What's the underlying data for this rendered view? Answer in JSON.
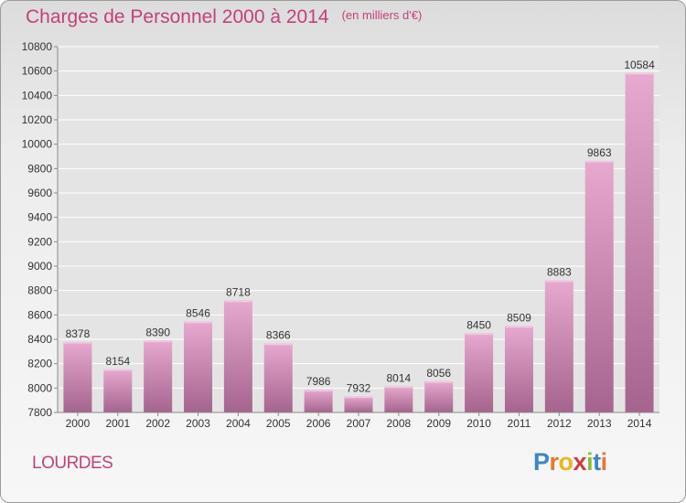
{
  "header": {
    "title": "Charges de Personnel 2000 à 2014",
    "subtitle": "(en milliers d'€)"
  },
  "footer": {
    "city": "LOURDES",
    "logo_letters": [
      "P",
      "r",
      "o",
      "x",
      "i",
      "t",
      "i"
    ],
    "logo_colors": [
      "#3d86c6",
      "#e8792b",
      "#e8b71e",
      "#d23a3a",
      "#8cbf3a",
      "#3d86c6",
      "#e8792b"
    ]
  },
  "colors": {
    "bar_top": "#e7a9cf",
    "bar_bottom": "#a5648e",
    "bar_highlight": "#f3c9e1",
    "accent": "#c2417b",
    "plot_bg": "#e4e4e4",
    "grid": "#ffffff"
  },
  "chart_data": {
    "type": "bar",
    "title": "Charges de Personnel 2000 à 2014",
    "subtitle": "(en milliers d'€)",
    "xlabel": "",
    "ylabel": "",
    "categories": [
      "2000",
      "2001",
      "2002",
      "2003",
      "2004",
      "2005",
      "2006",
      "2007",
      "2008",
      "2009",
      "2010",
      "2011",
      "2012",
      "2013",
      "2014"
    ],
    "values": [
      8378,
      8154,
      8390,
      8546,
      8718,
      8366,
      7986,
      7932,
      8014,
      8056,
      8450,
      8509,
      8883,
      9863,
      10584
    ],
    "ylim": [
      7800,
      10800
    ],
    "yticks": [
      7800,
      8000,
      8200,
      8400,
      8600,
      8800,
      9000,
      9200,
      9400,
      9600,
      9800,
      10000,
      10200,
      10400,
      10600,
      10800
    ],
    "grid": true,
    "data_labels": true
  }
}
